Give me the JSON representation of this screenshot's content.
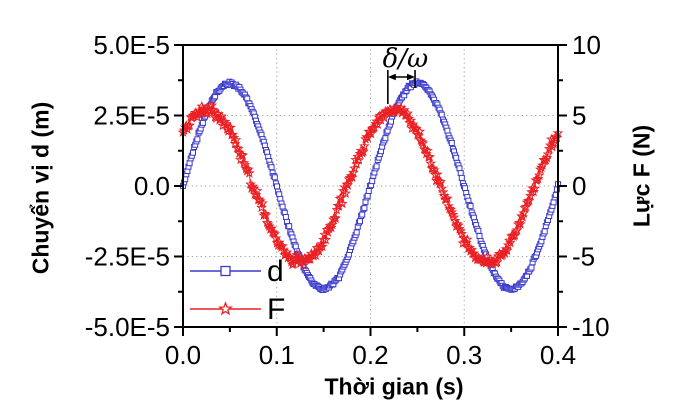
{
  "style": {
    "background": "#ffffff",
    "axis_color": "#000000",
    "text_color": "#000000",
    "grid_color": "#9e9e9e",
    "d_series_color": "#3a3acc",
    "f_series_color": "#ea2024"
  },
  "chart_data": {
    "type": "line",
    "title": "",
    "x_axis": {
      "label": "Thời gian (s)",
      "range": [
        0.0,
        0.4
      ],
      "tick_values": [
        0.0,
        0.1,
        0.2,
        0.3,
        0.4
      ],
      "tick_labels": [
        "0.0",
        "0.1",
        "0.2",
        "0.3",
        "0.4"
      ],
      "minor_tick_values": [
        0.05,
        0.15,
        0.25,
        0.35
      ],
      "gridlines": [
        0.1,
        0.2,
        0.3
      ]
    },
    "left_axis": {
      "label": "Chuyển vị d (m)",
      "range": [
        -5e-05,
        5e-05
      ],
      "tick_values": [
        5e-05,
        2.5e-05,
        0.0,
        -2.5e-05,
        -5e-05
      ],
      "tick_labels": [
        "5.0E-5",
        "2.5E-5",
        "0.0",
        "-2.5E-5",
        "-5.0E-5"
      ],
      "minor_tick_values": [
        3.75e-05,
        1.25e-05,
        -1.25e-05,
        -3.75e-05
      ],
      "gridlines": [
        2.5e-05,
        0.0,
        -2.5e-05
      ]
    },
    "right_axis": {
      "label": "Lực F (N)",
      "range": [
        -10,
        10
      ],
      "tick_values": [
        10,
        5,
        0,
        -5,
        -10
      ],
      "tick_labels": [
        "10",
        "5",
        "0",
        "-5",
        "-10"
      ],
      "minor_tick_values": [
        7.5,
        2.5,
        -2.5,
        -7.5
      ]
    },
    "series": [
      {
        "name": "d",
        "legend_label": "d",
        "axis": "left",
        "color": "#3a3acc",
        "marker": "open-square",
        "model": {
          "form": "sine",
          "amplitude": 3.65e-05,
          "frequency_hz": 5,
          "phase_deg": 0,
          "noise_sd": 5.5e-07,
          "n_points": 340,
          "t_start": 0.0,
          "t_end": 0.4
        }
      },
      {
        "name": "F",
        "legend_label": "F",
        "axis": "right",
        "color": "#ea2024",
        "marker": "open-star",
        "model": {
          "form": "sine",
          "amplitude": 5.4,
          "frequency_hz": 5,
          "phase_deg": 45,
          "noise_sd": 0.32,
          "n_points": 340,
          "t_start": 0.0,
          "t_end": 0.4
        }
      }
    ],
    "legend": {
      "position": "inside-bottom-left",
      "entries": [
        {
          "label": "d",
          "series": "d"
        },
        {
          "label": "F",
          "series": "F"
        }
      ]
    },
    "annotation": {
      "text": "δ/ω",
      "from_t": 0.2185,
      "to_t": 0.2475
    }
  }
}
